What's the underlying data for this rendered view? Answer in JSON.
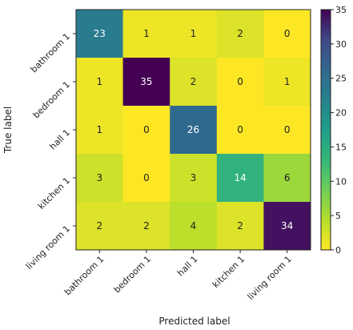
{
  "chart_data": {
    "type": "heatmap",
    "title": "",
    "xlabel": "Predicted label",
    "ylabel": "True label",
    "x_categories": [
      "bathroom 1",
      "bedroom 1",
      "hall 1",
      "kitchen 1",
      "living room 1"
    ],
    "y_categories": [
      "bathroom 1",
      "bedroom 1",
      "hall 1",
      "kitchen 1",
      "living room 1"
    ],
    "values": [
      [
        23,
        1,
        1,
        2,
        0
      ],
      [
        1,
        35,
        2,
        0,
        1
      ],
      [
        1,
        0,
        26,
        0,
        0
      ],
      [
        3,
        0,
        3,
        14,
        6
      ],
      [
        2,
        2,
        4,
        2,
        34
      ]
    ],
    "colormap": "viridis_r",
    "value_range": [
      0,
      35
    ],
    "colorbar_ticks": [
      0,
      5,
      10,
      15,
      20,
      25,
      30,
      35
    ]
  }
}
